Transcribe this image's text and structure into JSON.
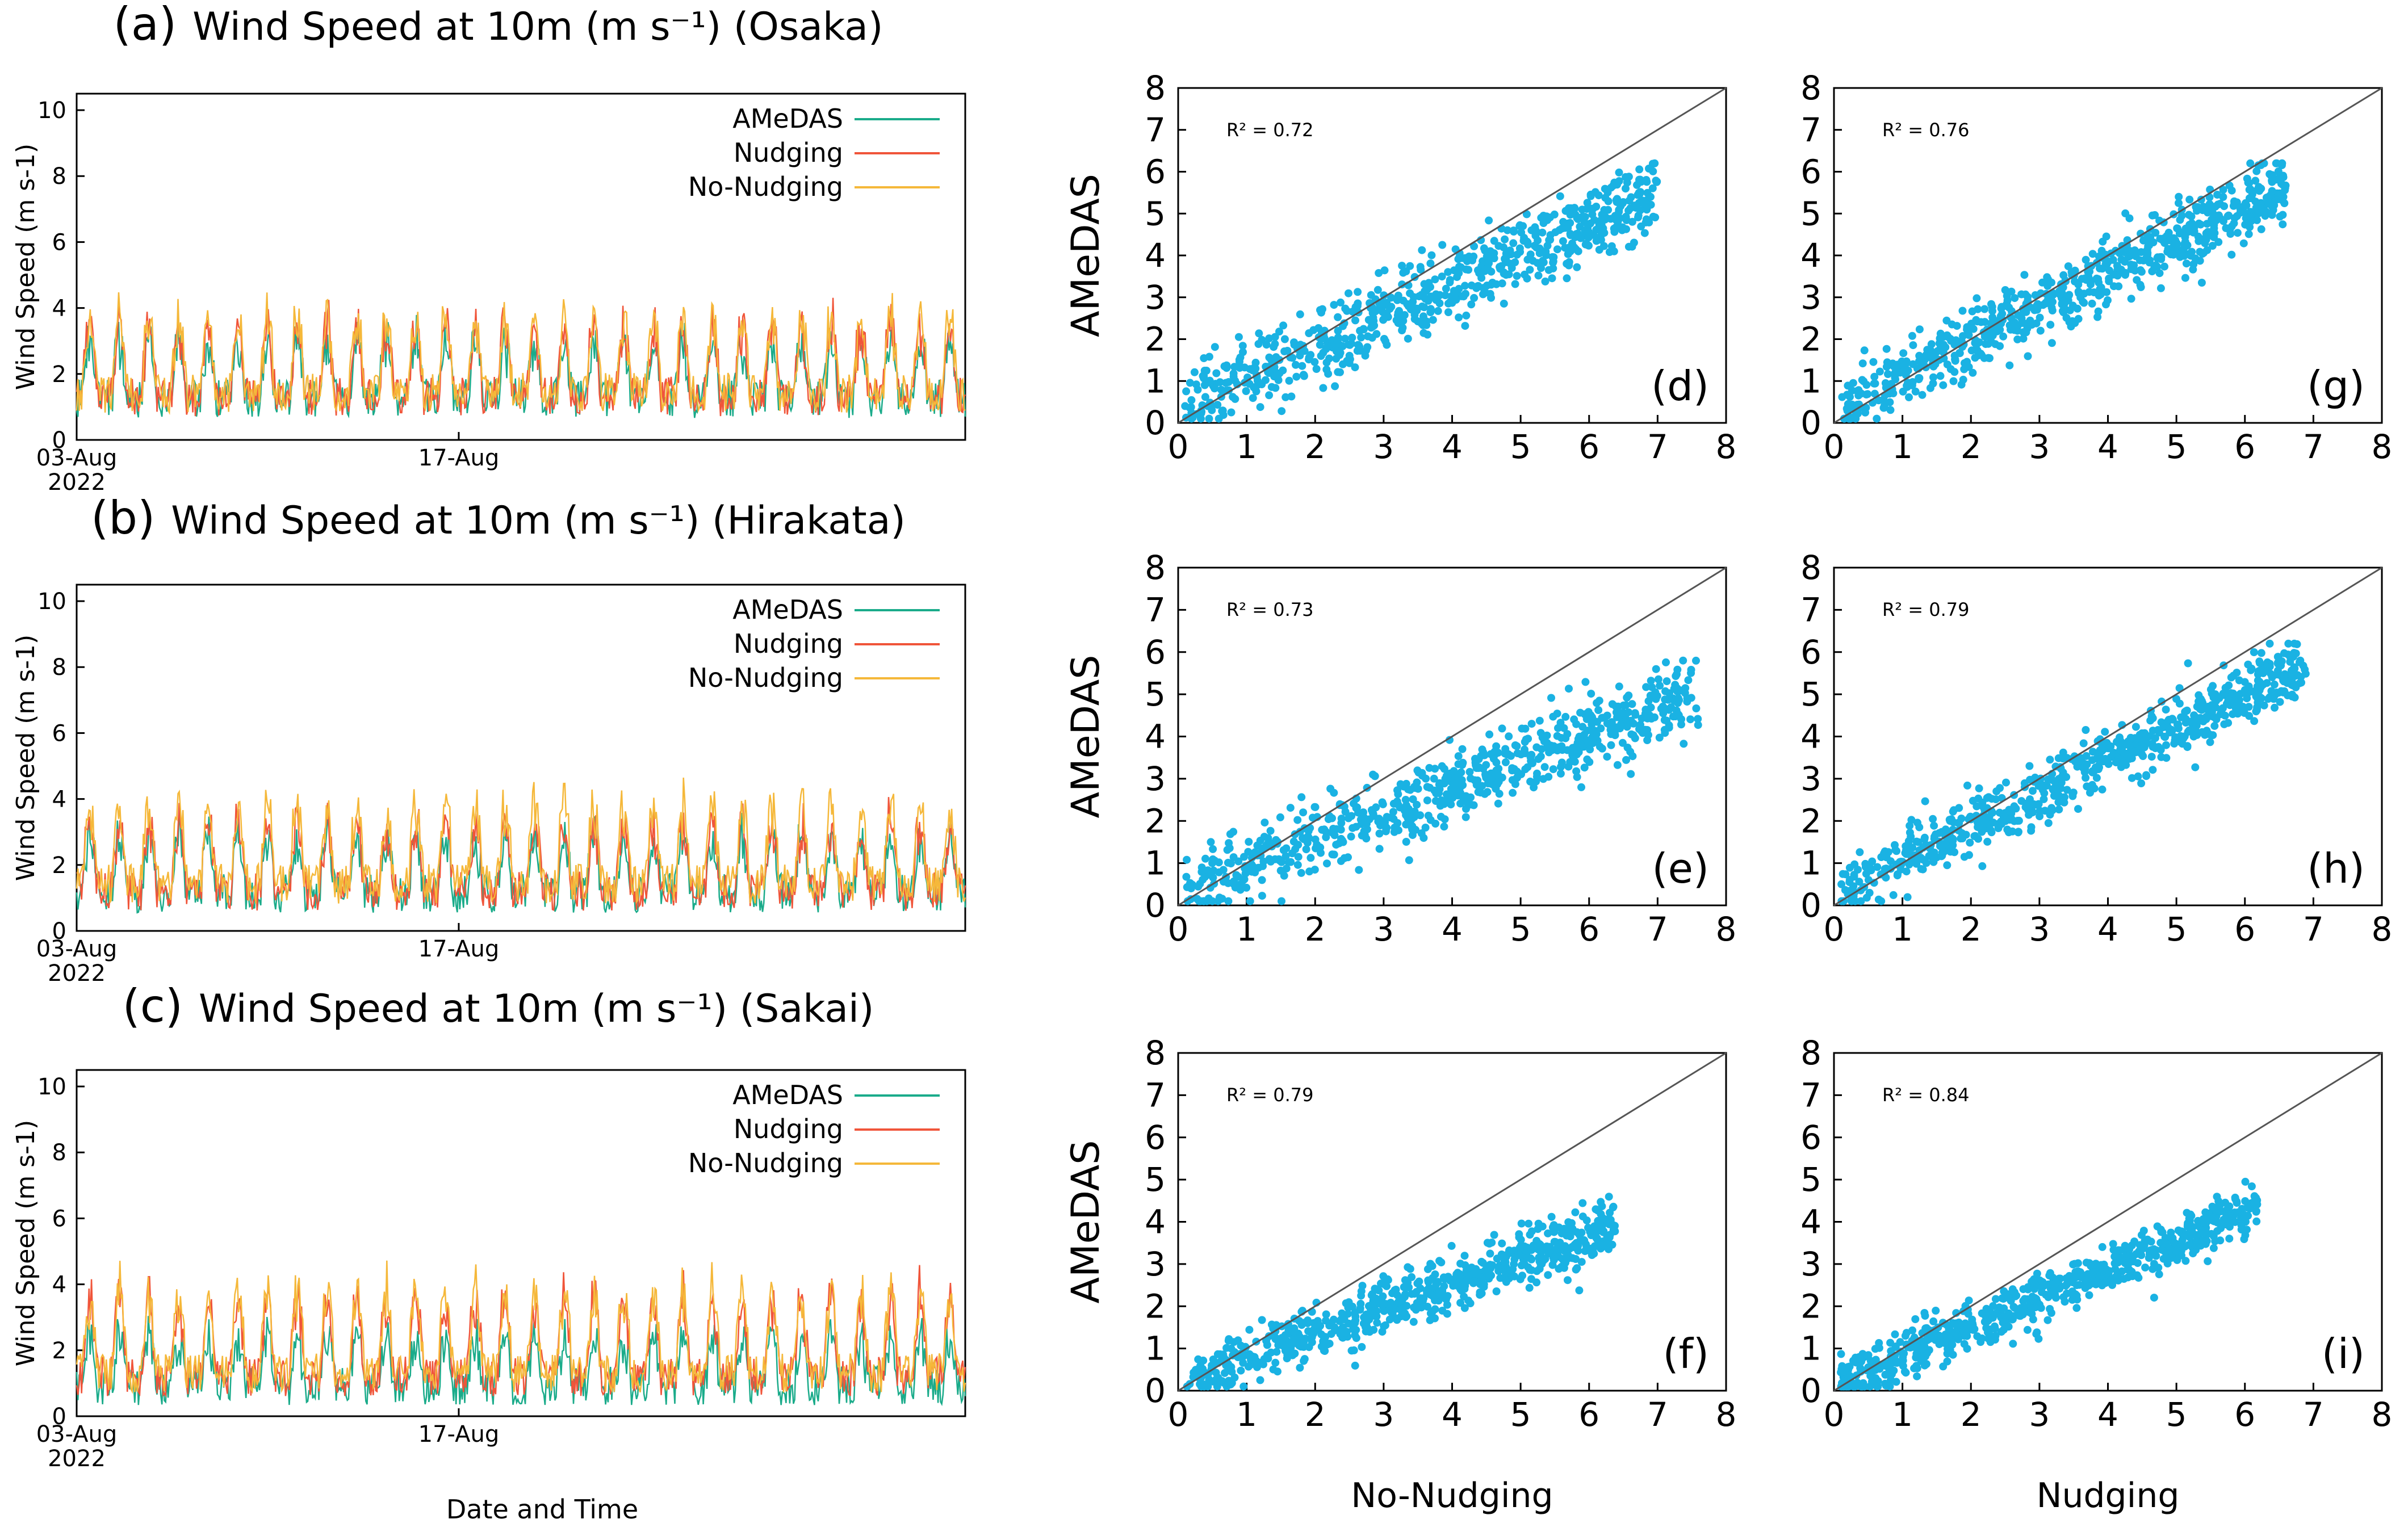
{
  "chart_data": [
    {
      "type": "line",
      "panel": "(a)",
      "title": "Wind Speed at 10m (m s⁻¹) (Osaka)",
      "ylabel": "Wind Speed (m s-1)",
      "ylim": [
        0,
        10.5
      ],
      "yticks": [
        "0",
        "2",
        "4",
        "6",
        "8",
        "10"
      ],
      "xtick_labels": [
        "03-Aug",
        "17-Aug"
      ],
      "xtick_sublabel": "2022",
      "legend": [
        "AMeDAS",
        "Nudging",
        "No-Nudging"
      ],
      "colors": {
        "AMeDAS": "#1aab8a",
        "Nudging": "#f0553a",
        "No-Nudging": "#f5b83a"
      },
      "series": [
        {
          "name": "AMeDAS",
          "base": 2.3,
          "amp": 1.6,
          "seed": 11
        },
        {
          "name": "Nudging",
          "base": 2.4,
          "amp": 2.0,
          "seed": 12
        },
        {
          "name": "No-Nudging",
          "base": 2.6,
          "amp": 2.1,
          "seed": 13
        }
      ]
    },
    {
      "type": "line",
      "panel": "(b)",
      "title": "Wind Speed at 10m (m s⁻¹) (Hirakata)",
      "ylabel": "Wind Speed (m s-1)",
      "ylim": [
        0,
        10.5
      ],
      "yticks": [
        "0",
        "2",
        "4",
        "6",
        "8",
        "10"
      ],
      "xtick_labels": [
        "03-Aug",
        "17-Aug"
      ],
      "xtick_sublabel": "2022",
      "legend": [
        "AMeDAS",
        "Nudging",
        "No-Nudging"
      ],
      "colors": {
        "AMeDAS": "#1aab8a",
        "Nudging": "#f0553a",
        "No-Nudging": "#f5b83a"
      },
      "series": [
        {
          "name": "AMeDAS",
          "base": 2.1,
          "amp": 1.6,
          "seed": 21
        },
        {
          "name": "Nudging",
          "base": 2.2,
          "amp": 1.9,
          "seed": 22
        },
        {
          "name": "No-Nudging",
          "base": 2.6,
          "amp": 2.2,
          "seed": 23
        }
      ]
    },
    {
      "type": "line",
      "panel": "(c)",
      "title": "Wind Speed at 10m (m s⁻¹) (Sakai)",
      "ylabel": "Wind Speed (m s-1)",
      "ylim": [
        0,
        10.5
      ],
      "yticks": [
        "0",
        "2",
        "4",
        "6",
        "8",
        "10"
      ],
      "xtick_labels": [
        "03-Aug",
        "17-Aug"
      ],
      "xtick_sublabel": "2022",
      "legend": [
        "AMeDAS",
        "Nudging",
        "No-Nudging"
      ],
      "colors": {
        "AMeDAS": "#1aab8a",
        "Nudging": "#f0553a",
        "No-Nudging": "#f5b83a"
      },
      "series": [
        {
          "name": "AMeDAS",
          "base": 1.7,
          "amp": 1.3,
          "seed": 31
        },
        {
          "name": "Nudging",
          "base": 2.2,
          "amp": 2.2,
          "seed": 32
        },
        {
          "name": "No-Nudging",
          "base": 2.4,
          "amp": 2.3,
          "seed": 33
        }
      ]
    },
    {
      "type": "scatter",
      "panel": "(d)",
      "r2_label": "R² = 0.72",
      "ylabel": "AMeDAS",
      "xlabel": "",
      "xlim": [
        0,
        8
      ],
      "ylim": [
        0,
        8
      ],
      "ticks": [
        "0",
        "1",
        "2",
        "3",
        "4",
        "5",
        "6",
        "7",
        "8"
      ],
      "color": "#1ab2e3",
      "n_points": 700,
      "slope": 0.72,
      "intercept": 0.4,
      "spread": 0.75,
      "xmax": 7.0,
      "seed": 41
    },
    {
      "type": "scatter",
      "panel": "(e)",
      "r2_label": "R² = 0.73",
      "ylabel": "AMeDAS",
      "xlabel": "",
      "xlim": [
        0,
        8
      ],
      "ylim": [
        0,
        8
      ],
      "ticks": [
        "0",
        "1",
        "2",
        "3",
        "4",
        "5",
        "6",
        "7",
        "8"
      ],
      "color": "#1ab2e3",
      "n_points": 700,
      "slope": 0.62,
      "intercept": 0.3,
      "spread": 0.7,
      "xmax": 7.6,
      "seed": 42
    },
    {
      "type": "scatter",
      "panel": "(f)",
      "r2_label": "R² = 0.79",
      "ylabel": "AMeDAS",
      "xlabel": "No-Nudging",
      "xlim": [
        0,
        8
      ],
      "ylim": [
        0,
        8
      ],
      "ticks": [
        "0",
        "1",
        "2",
        "3",
        "4",
        "5",
        "6",
        "7",
        "8"
      ],
      "color": "#1ab2e3",
      "n_points": 700,
      "slope": 0.58,
      "intercept": 0.2,
      "spread": 0.55,
      "xmax": 6.4,
      "seed": 43
    },
    {
      "type": "scatter",
      "panel": "(g)",
      "r2_label": "R² = 0.76",
      "ylabel": "",
      "xlabel": "",
      "xlim": [
        0,
        8
      ],
      "ylim": [
        0,
        8
      ],
      "ticks": [
        "0",
        "1",
        "2",
        "3",
        "4",
        "5",
        "6",
        "7",
        "8"
      ],
      "color": "#1ab2e3",
      "n_points": 700,
      "slope": 0.8,
      "intercept": 0.35,
      "spread": 0.7,
      "xmax": 6.6,
      "seed": 44
    },
    {
      "type": "scatter",
      "panel": "(h)",
      "r2_label": "R² = 0.79",
      "ylabel": "",
      "xlabel": "",
      "xlim": [
        0,
        8
      ],
      "ylim": [
        0,
        8
      ],
      "ticks": [
        "0",
        "1",
        "2",
        "3",
        "4",
        "5",
        "6",
        "7",
        "8"
      ],
      "color": "#1ab2e3",
      "n_points": 700,
      "slope": 0.78,
      "intercept": 0.3,
      "spread": 0.6,
      "xmax": 6.9,
      "seed": 45
    },
    {
      "type": "scatter",
      "panel": "(i)",
      "r2_label": "R² = 0.84",
      "ylabel": "",
      "xlabel": "Nudging",
      "xlim": [
        0,
        8
      ],
      "ylim": [
        0,
        8
      ],
      "ticks": [
        "0",
        "1",
        "2",
        "3",
        "4",
        "5",
        "6",
        "7",
        "8"
      ],
      "color": "#1ab2e3",
      "n_points": 700,
      "slope": 0.68,
      "intercept": 0.15,
      "spread": 0.5,
      "xmax": 6.2,
      "seed": 46
    }
  ],
  "figure": {
    "bottom_xlabel": "Date and Time"
  }
}
